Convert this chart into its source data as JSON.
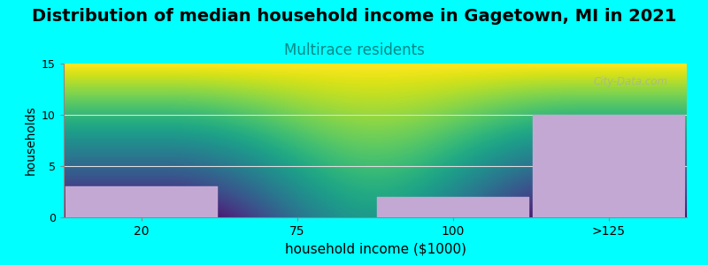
{
  "title": "Distribution of median household income in Gagetown, MI in 2021",
  "subtitle": "Multirace residents",
  "xlabel": "household income ($1000)",
  "ylabel": "households",
  "background_color": "#00FFFF",
  "plot_bg_top": "#FFFFFF",
  "plot_bg_bottom": "#D8EDD8",
  "bar_color": "#C4A8D4",
  "bar_edge_color": "#C4A8D4",
  "categories": [
    "20",
    "75",
    "100",
    ">125"
  ],
  "values": [
    3,
    0,
    2,
    10
  ],
  "ylim": [
    0,
    15
  ],
  "yticks": [
    0,
    5,
    10,
    15
  ],
  "title_fontsize": 14,
  "subtitle_fontsize": 12,
  "subtitle_color": "#008888",
  "xlabel_fontsize": 11,
  "ylabel_fontsize": 10,
  "watermark": "City-Data.com",
  "grid_color": "#DDDDDD"
}
